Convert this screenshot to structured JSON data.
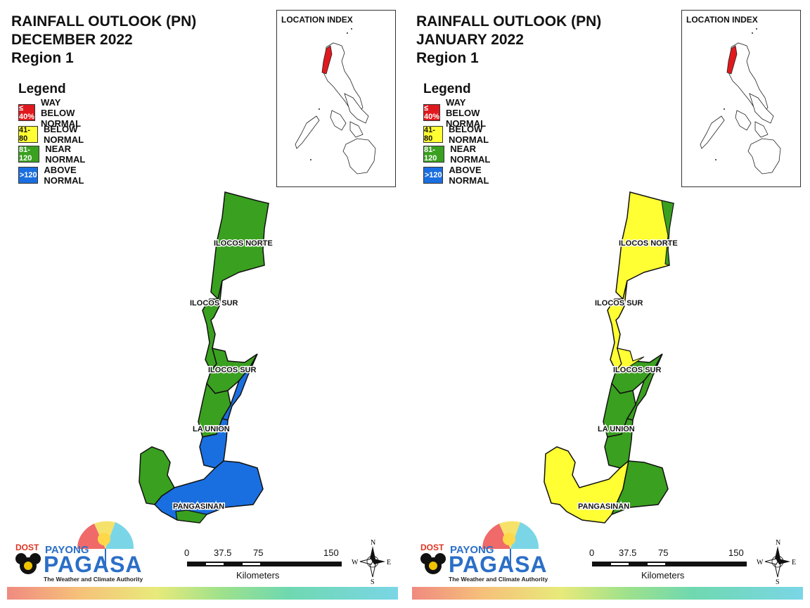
{
  "panels": [
    {
      "title": [
        "RAINFALL OUTLOOK (PN)",
        "DECEMBER 2022",
        "Region 1"
      ],
      "location_index_title": "LOCATION INDEX",
      "legend_title": "Legend",
      "legend": [
        {
          "swatch": "≤ 40%",
          "label": "WAY BELOW NORMAL",
          "color": "#e0191e"
        },
        {
          "swatch": "41-80",
          "label": "BELOW NORMAL",
          "color": "#ffff33"
        },
        {
          "swatch": "81-120",
          "label": "NEAR NORMAL",
          "color": "#3aa020"
        },
        {
          "swatch": ">120",
          "label": "ABOVE NORMAL",
          "color": "#1a6fe0"
        }
      ],
      "provinces": [
        "ILOCOS NORTE",
        "ILOCOS SUR",
        "ILOCOS SUR",
        "LA UNION",
        "PANGASINAN"
      ],
      "scale": {
        "ticks": [
          "0",
          "37.5",
          "75",
          "150"
        ],
        "unit": "Kilometers"
      },
      "compass": {
        "n": "N",
        "s": "S",
        "e": "E",
        "w": "W"
      },
      "logo": {
        "dost": "DOST",
        "payong": "PAYONG",
        "pagasa": "PAGASA",
        "tagline": "The Weather and Climate Authority"
      }
    },
    {
      "title": [
        "RAINFALL OUTLOOK (PN)",
        "JANUARY 2022",
        "Region 1"
      ],
      "location_index_title": "LOCATION INDEX",
      "legend_title": "Legend",
      "legend": [
        {
          "swatch": "≤ 40%",
          "label": "WAY BELOW NORMAL",
          "color": "#e0191e"
        },
        {
          "swatch": "41-80",
          "label": "BELOW NORMAL",
          "color": "#ffff33"
        },
        {
          "swatch": "81-120",
          "label": "NEAR NORMAL",
          "color": "#3aa020"
        },
        {
          "swatch": ">120",
          "label": "ABOVE NORMAL",
          "color": "#1a6fe0"
        }
      ],
      "provinces": [
        "ILOCOS NORTE",
        "ILOCOS SUR",
        "ILOCOS SUR",
        "LA UNION",
        "PANGASINAN"
      ],
      "scale": {
        "ticks": [
          "0",
          "37.5",
          "75",
          "150"
        ],
        "unit": "Kilometers"
      },
      "compass": {
        "n": "N",
        "s": "S",
        "e": "E",
        "w": "W"
      },
      "logo": {
        "dost": "DOST",
        "payong": "PAYONG",
        "pagasa": "PAGASA",
        "tagline": "The Weather and Climate Authority"
      }
    }
  ]
}
